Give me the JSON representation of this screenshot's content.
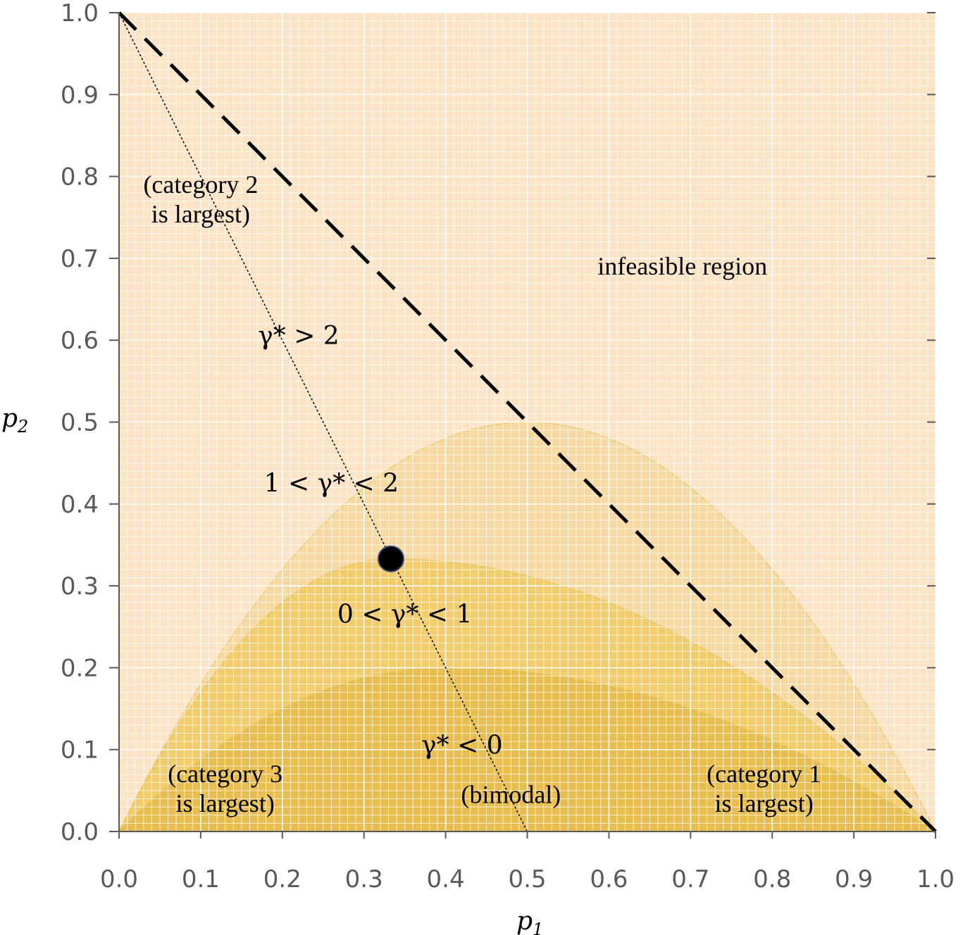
{
  "chart_data": {
    "type": "area",
    "xlabel": "p",
    "xlabel_sub": "1",
    "ylabel": "p",
    "ylabel_sub": "2",
    "xlim": [
      0,
      1
    ],
    "ylim": [
      0,
      1
    ],
    "xticks": [
      "0.0",
      "0.1",
      "0.2",
      "0.3",
      "0.4",
      "0.5",
      "0.6",
      "0.7",
      "0.8",
      "0.9",
      "1.0"
    ],
    "yticks": [
      "0.0",
      "0.1",
      "0.2",
      "0.3",
      "0.4",
      "0.5",
      "0.6",
      "0.7",
      "0.8",
      "0.9",
      "1.0"
    ],
    "grid": true,
    "colors": {
      "background": "#fbe3c6",
      "region_low": "#f6d9a2",
      "region_mid": "#f1cc6c",
      "region_high": "#e6bd4e",
      "grid_line": "#ffffff",
      "boundary": "#000000",
      "point": "#000000"
    },
    "regions": [
      {
        "name": "gamma_1_2",
        "peak": 0.5,
        "skew": 0.5
      },
      {
        "name": "gamma_0_1",
        "peak": 0.333,
        "skew": 0.333
      },
      {
        "name": "gamma_lt_0",
        "peak": 0.2,
        "skew": 0.4
      }
    ],
    "feasibility_boundary": {
      "x": [
        0,
        1
      ],
      "y": [
        1,
        0
      ],
      "style": "dashed"
    },
    "reference_line": {
      "x": [
        0,
        0.5
      ],
      "y": [
        1,
        0
      ],
      "style": "dotted"
    },
    "point": {
      "x": 0.333,
      "y": 0.333
    },
    "annotations": [
      {
        "id": "cat2",
        "lines": [
          "(category 2",
          "is largest)"
        ],
        "x": 0.1,
        "y": 0.78
      },
      {
        "id": "infeasible",
        "lines": [
          "infeasible region"
        ],
        "x": 0.69,
        "y": 0.68
      },
      {
        "id": "g_gt2",
        "lines": [
          "γ* > 2"
        ],
        "x": 0.22,
        "y": 0.595
      },
      {
        "id": "g_12",
        "lines": [
          "1 < γ* < 2"
        ],
        "x": 0.26,
        "y": 0.415
      },
      {
        "id": "g_01",
        "lines": [
          "0 < γ* < 1"
        ],
        "x": 0.35,
        "y": 0.255
      },
      {
        "id": "g_lt0",
        "lines": [
          "γ* < 0"
        ],
        "x": 0.42,
        "y": 0.095
      },
      {
        "id": "bimodal",
        "lines": [
          "(bimodal)"
        ],
        "x": 0.48,
        "y": 0.035
      },
      {
        "id": "cat3",
        "lines": [
          "(category 3",
          "is largest)"
        ],
        "x": 0.13,
        "y": 0.06
      },
      {
        "id": "cat1",
        "lines": [
          "(category 1",
          "is largest)"
        ],
        "x": 0.79,
        "y": 0.06
      }
    ]
  }
}
